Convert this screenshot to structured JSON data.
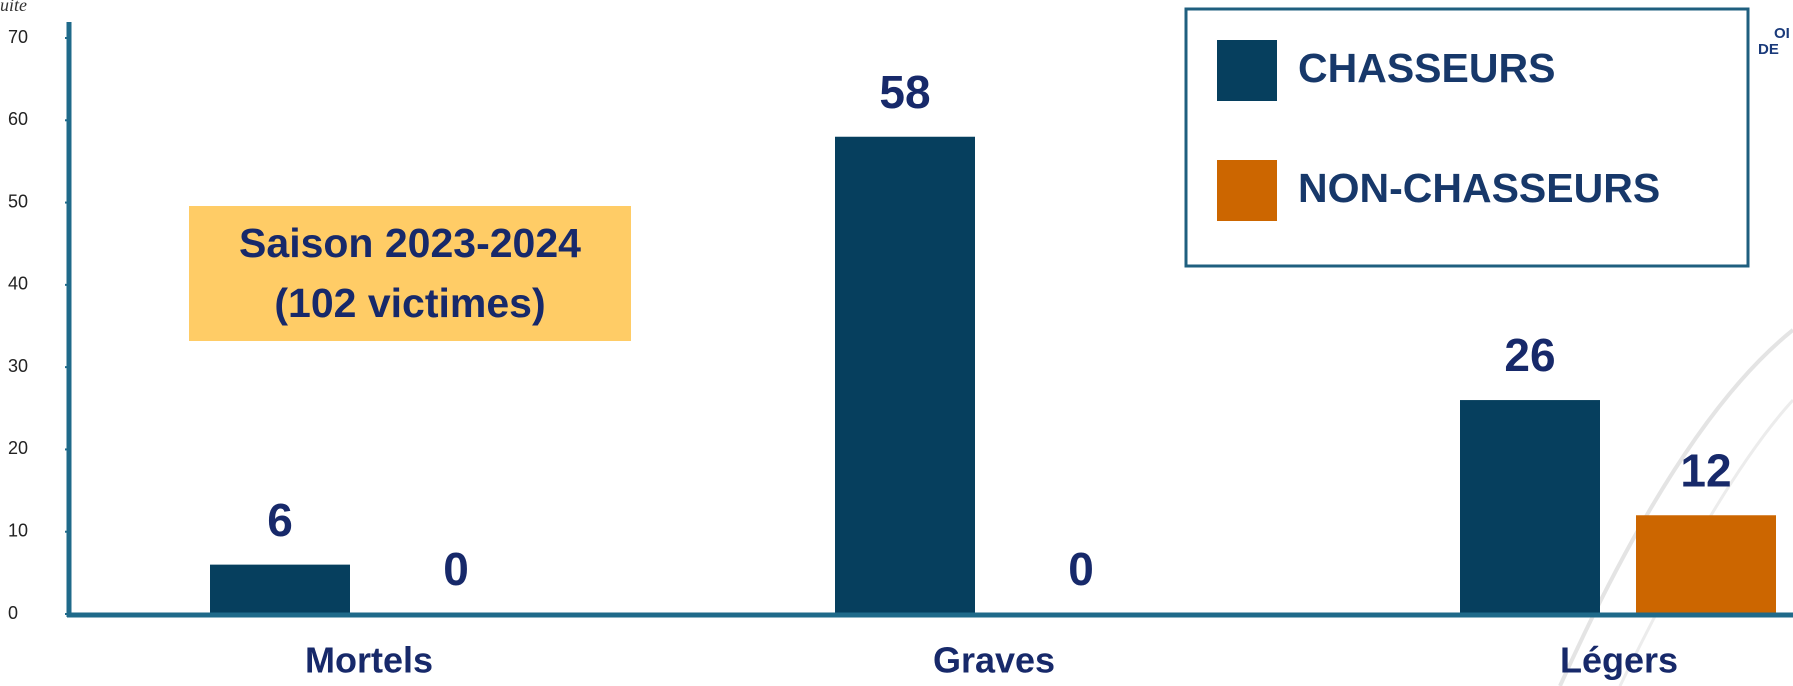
{
  "chart_data": {
    "type": "bar",
    "corner_text": "uite",
    "logo_lines": [
      "OI",
      "DE"
    ],
    "annotation": [
      "Saison 2023-2024",
      "(102 victimes)"
    ],
    "categories": [
      "Mortels",
      "Graves",
      "Légers"
    ],
    "series": [
      {
        "name": "CHASSEURS",
        "color": "#063f5e",
        "values": [
          6,
          58,
          26
        ]
      },
      {
        "name": "NON-CHASSEURS",
        "color": "#cc6600",
        "values": [
          0,
          0,
          12
        ]
      }
    ],
    "ylim": [
      0,
      70
    ],
    "yticks": [
      0,
      10,
      20,
      30,
      40,
      50,
      60,
      70
    ],
    "legend": "top-right",
    "grid": false
  }
}
